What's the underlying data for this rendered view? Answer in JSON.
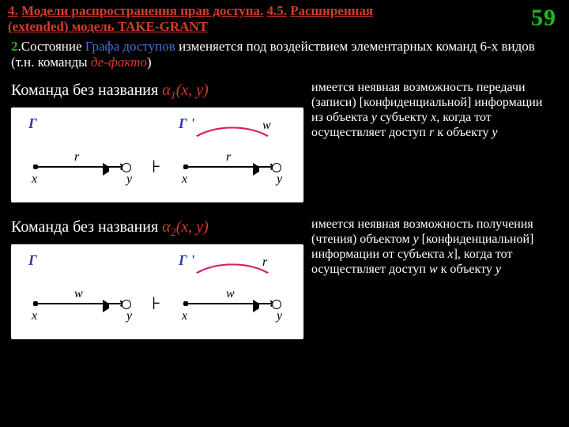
{
  "slide_number": "59",
  "header": {
    "line1_pre": "4.",
    "line1_txt": "Модели распространения прав доступа.",
    "line1_post": "4.5.",
    "line1_tail": "Расширенная",
    "line2": "(extended) модель TAKE-GRANT"
  },
  "intro": {
    "n": "2",
    "p1": ".Состояние ",
    "p2": "Графа доступов",
    "p3": " изменяется под воздействием элементарных команд 6-х видов (т.н. команды ",
    "p4": "де-факто",
    "p5": ")"
  },
  "blocks": [
    {
      "title_pre": "Команда без названия ",
      "alpha": "α",
      "sub": "1",
      "args": "(x, y)",
      "left_edge_label": "r",
      "right_edge_label": "r",
      "arc_label": "w",
      "desc_parts": [
        {
          "t": "имеется неявная возможность передачи (записи) [конфиденциальной] информации из объекта ",
          "i": false
        },
        {
          "t": "y",
          "i": true
        },
        {
          "t": " субъекту ",
          "i": false
        },
        {
          "t": "x",
          "i": true
        },
        {
          "t": ", когда тот осуществляет доступ  ",
          "i": false
        },
        {
          "t": "r",
          "i": true
        },
        {
          "t": "  к объекту  ",
          "i": false
        },
        {
          "t": "y",
          "i": true
        }
      ]
    },
    {
      "title_pre": "Команда без названия ",
      "alpha": "α",
      "sub": "2",
      "args": "(x, y)",
      "left_edge_label": "w",
      "right_edge_label": "w",
      "arc_label": "r",
      "desc_parts": [
        {
          "t": "имеется неявная возможность получения (чтения) объектом ",
          "i": false
        },
        {
          "t": "y",
          "i": true
        },
        {
          "t": " [конфиденциальной] информации от субъекта ",
          "i": false
        },
        {
          "t": "x",
          "i": true
        },
        {
          "t": "], когда тот осуществляет доступ  ",
          "i": false
        },
        {
          "t": "w",
          "i": true
        },
        {
          "t": "  к объекту  ",
          "i": false
        },
        {
          "t": "y",
          "i": true
        }
      ]
    }
  ],
  "graph_labels": {
    "G": "Г",
    "Gp": "Г '",
    "x": "x",
    "y": "y"
  },
  "colors": {
    "bg": "#000000",
    "accent_red": "#d63a2a",
    "accent_green": "#1abb1a",
    "accent_blue": "#2a3ca8",
    "arc": "#d81f6a"
  }
}
